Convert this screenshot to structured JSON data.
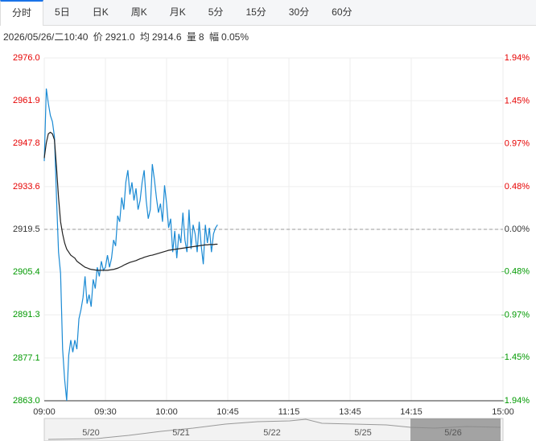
{
  "tabs": [
    "分时",
    "5日",
    "日K",
    "周K",
    "月K",
    "5分",
    "15分",
    "30分",
    "60分"
  ],
  "info": {
    "time": "2026/05/26/二10:40",
    "price_label": "价",
    "price": "2921.0",
    "avg_label": "均",
    "avg": "2914.6",
    "volume_label": "量",
    "volume": "8",
    "range_label": "幅",
    "range": "0.05%"
  },
  "chart_data": {
    "type": "line",
    "xlim": [
      0,
      225
    ],
    "xticks": [
      {
        "value": 0,
        "label": "09:00"
      },
      {
        "value": 30,
        "label": "09:30"
      },
      {
        "value": 60,
        "label": "10:00"
      },
      {
        "value": 90,
        "label": "10:45"
      },
      {
        "value": 120,
        "label": "11:15"
      },
      {
        "value": 150,
        "label": "13:45"
      },
      {
        "value": 180,
        "label": "14:15"
      },
      {
        "value": 225,
        "label": "15:00"
      }
    ],
    "ylim": [
      2863.0,
      2976.0
    ],
    "yticks": [
      {
        "value": 2976.0,
        "label": "2976.0"
      },
      {
        "value": 2961.9,
        "label": "2961.9"
      },
      {
        "value": 2947.8,
        "label": "2947.8"
      },
      {
        "value": 2933.6,
        "label": "2933.6"
      },
      {
        "value": 2919.5,
        "label": "2919.5"
      },
      {
        "value": 2905.4,
        "label": "2905.4"
      },
      {
        "value": 2891.3,
        "label": "2891.3"
      },
      {
        "value": 2877.1,
        "label": "2877.1"
      },
      {
        "value": 2863.0,
        "label": "2863.0"
      }
    ],
    "y2lim": [
      -1.94,
      1.94
    ],
    "y2ticks": [
      {
        "value": 1.94,
        "label": "1.94%"
      },
      {
        "value": 1.45,
        "label": "1.45%"
      },
      {
        "value": 0.97,
        "label": "0.97%"
      },
      {
        "value": 0.48,
        "label": "0.48%"
      },
      {
        "value": 0.0,
        "label": "0.00%"
      },
      {
        "value": -0.48,
        "label": "-0.48%"
      },
      {
        "value": -0.97,
        "label": "-0.97%"
      },
      {
        "value": -1.45,
        "label": "-1.45%"
      },
      {
        "value": -1.94,
        "label": "-1.94%"
      }
    ],
    "reference": 2919.5,
    "up_color": "#e60000",
    "down_color": "#009900",
    "flat_color": "#333333",
    "grid": true,
    "series": [
      {
        "color": "#1a8ad4",
        "values": [
          2942.0,
          2965.9,
          2961,
          2957,
          2955,
          2950,
          2930,
          2912,
          2905,
          2880,
          2870,
          2863,
          2878,
          2883,
          2879,
          2883,
          2880,
          2890,
          2893,
          2897,
          2904,
          2895,
          2898,
          2894,
          2903,
          2900,
          2907,
          2904,
          2909,
          2906,
          2907,
          2911,
          2907,
          2910,
          2916,
          2914,
          2924,
          2922,
          2930,
          2926,
          2935,
          2939,
          2931,
          2935,
          2929,
          2933,
          2926,
          2929,
          2935,
          2939,
          2929,
          2923,
          2926,
          2941,
          2936,
          2930,
          2925,
          2928,
          2922,
          2934,
          2928,
          2920,
          2923,
          2912,
          2919,
          2910,
          2918,
          2915,
          2925,
          2916,
          2912,
          2926,
          2913,
          2921,
          2918,
          2912,
          2922,
          2914,
          2908,
          2921,
          2915,
          2920,
          2912,
          2918,
          2920,
          2921.0
        ]
      },
      {
        "color": "#222222",
        "values": [
          2943,
          2948,
          2951,
          2951.5,
          2951,
          2949,
          2940,
          2930,
          2922,
          2918,
          2915,
          2913,
          2912,
          2911,
          2910.5,
          2910,
          2909,
          2908.5,
          2908,
          2907.5,
          2907,
          2906.8,
          2906.5,
          2906.3,
          2906.2,
          2906.1,
          2906,
          2906,
          2906,
          2906,
          2906,
          2906,
          2906.1,
          2906.2,
          2906.3,
          2906.5,
          2906.7,
          2907,
          2907.3,
          2907.7,
          2908,
          2908.3,
          2908.6,
          2908.8,
          2909,
          2909.2,
          2909.5,
          2909.8,
          2910,
          2910.3,
          2910.5,
          2910.7,
          2910.9,
          2911,
          2911.2,
          2911.4,
          2911.6,
          2911.8,
          2912,
          2912.2,
          2912.4,
          2912.6,
          2912.7,
          2912.8,
          2912.9,
          2913,
          2913.1,
          2913.2,
          2913.3,
          2913.4,
          2913.5,
          2913.6,
          2913.7,
          2913.8,
          2913.9,
          2914,
          2914.1,
          2914.2,
          2914.3,
          2914.4,
          2914.4,
          2914.5,
          2914.5,
          2914.5,
          2914.6,
          2914.6
        ]
      }
    ],
    "navigator_dates": [
      "5/20",
      "5/21",
      "5/22",
      "5/25",
      "5/26"
    ]
  }
}
